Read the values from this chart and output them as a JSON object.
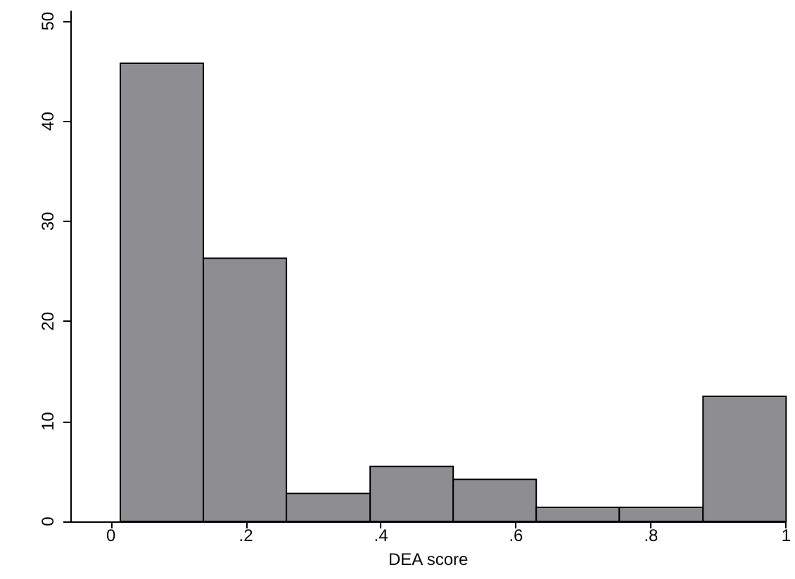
{
  "chart_data": {
    "type": "histogram",
    "xlabel": "DEA score",
    "bins": [
      0.014,
      0.137,
      0.26,
      0.384,
      0.507,
      0.63,
      0.753,
      0.877,
      1.0
    ],
    "values": [
      45.8,
      26.3,
      2.8,
      5.5,
      4.2,
      1.4,
      1.4,
      12.5
    ],
    "color": "#8e8e92",
    "xlim": [
      -0.06,
      1.0
    ],
    "xticks": [
      {
        "value": 0,
        "label": "0"
      },
      {
        "value": 0.2,
        "label": ".2"
      },
      {
        "value": 0.4,
        "label": ".4"
      },
      {
        "value": 0.6,
        "label": ".6"
      },
      {
        "value": 0.8,
        "label": ".8"
      },
      {
        "value": 1,
        "label": "1"
      }
    ],
    "ylim": [
      0,
      51
    ],
    "yticks": [
      0,
      10,
      20,
      30,
      40,
      50
    ],
    "grid": false
  }
}
